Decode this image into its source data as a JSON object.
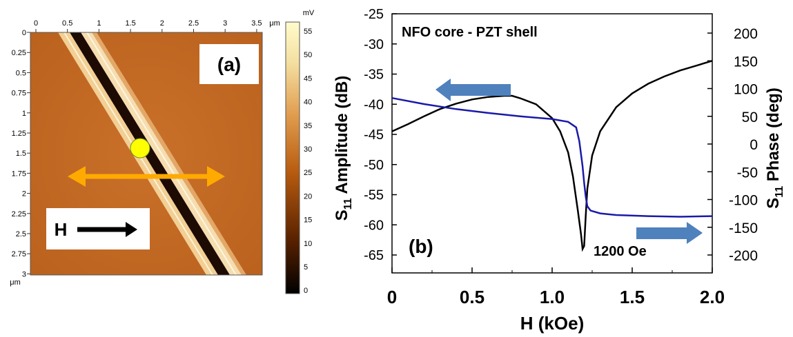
{
  "panel_a": {
    "label": "(a)",
    "x_ticks": [
      "0",
      "0.5",
      "1",
      "1.5",
      "2",
      "2.5",
      "3",
      "3.5"
    ],
    "x_unit": "μm",
    "y_ticks": [
      "0",
      "0.25",
      "0.5",
      "0.75",
      "1",
      "1.25",
      "1.5",
      "1.75",
      "2",
      "2.25",
      "2.5",
      "2.75",
      "3"
    ],
    "y_unit": "μm",
    "colorbar_unit": "mV",
    "colorbar_ticks": [
      "55",
      "50",
      "45",
      "40",
      "35",
      "30",
      "25",
      "20",
      "15",
      "10",
      "5",
      "0"
    ],
    "field_label": "H",
    "colors": {
      "orange": "#ffaa00",
      "dot": "#ffff00",
      "stripe": "#f4d7a8"
    }
  },
  "panel_b": {
    "label": "(b)",
    "title": "NFO core - PZT shell",
    "xlabel": "H (kOe)",
    "ylabel_main": "S",
    "ylabel_sub": "11",
    "ylabel_rest": " Amplitude (dB)",
    "y2label_main": "S",
    "y2label_sub": "11",
    "y2label_rest": " Phase (deg)",
    "annotation": "1200 Oe",
    "x_ticks": [
      "0",
      "0.5",
      "1.0",
      "1.5",
      "2.0"
    ],
    "y_ticks": [
      "-25",
      "-30",
      "-35",
      "-40",
      "-45",
      "-50",
      "-55",
      "-60",
      "-65"
    ],
    "y2_ticks": [
      "200",
      "150",
      "100",
      "50",
      "0",
      "-50",
      "-100",
      "-150",
      "-200"
    ],
    "colors": {
      "amplitude": "#000000",
      "phase": "#1a1aa8",
      "arrow": "#4f81bd"
    }
  },
  "chart_data": [
    {
      "type": "line",
      "title": "NFO core - PZT shell",
      "xlabel": "H (kOe)",
      "ylabel": "S11 Amplitude (dB)",
      "y2label": "S11 Phase (deg)",
      "xlim": [
        0,
        2.0
      ],
      "ylim": [
        -25,
        -65
      ],
      "y2lim": [
        -230,
        230
      ],
      "series": [
        {
          "axis": "left",
          "x": [
            0,
            0.1,
            0.2,
            0.3,
            0.4,
            0.5,
            0.6,
            0.7,
            0.75,
            0.8,
            0.9,
            1.0,
            1.05,
            1.1,
            1.13,
            1.16,
            1.18,
            1.19,
            1.2,
            1.21,
            1.22,
            1.25,
            1.3,
            1.4,
            1.5,
            1.6,
            1.7,
            1.8,
            1.9,
            2.0
          ],
          "values": [
            -44.5,
            -43.3,
            -42.0,
            -40.8,
            -39.9,
            -39.2,
            -38.8,
            -38.6,
            -38.6,
            -39.0,
            -40.0,
            -42.3,
            -44.5,
            -48.0,
            -52.0,
            -57.5,
            -61.5,
            -64.0,
            -63.5,
            -58.5,
            -54.0,
            -48.5,
            -44.5,
            -40.5,
            -38.2,
            -36.6,
            -35.4,
            -34.4,
            -33.6,
            -32.8
          ]
        },
        {
          "axis": "right",
          "x": [
            0,
            0.2,
            0.4,
            0.6,
            0.8,
            1.0,
            1.1,
            1.15,
            1.17,
            1.19,
            1.2,
            1.21,
            1.22,
            1.24,
            1.3,
            1.4,
            1.6,
            1.8,
            2.0
          ],
          "values": [
            83,
            72,
            63,
            56,
            50,
            45,
            40,
            30,
            5,
            -40,
            -70,
            -95,
            -112,
            -120,
            -125,
            -128,
            -130,
            -131,
            -130
          ]
        }
      ]
    }
  ]
}
